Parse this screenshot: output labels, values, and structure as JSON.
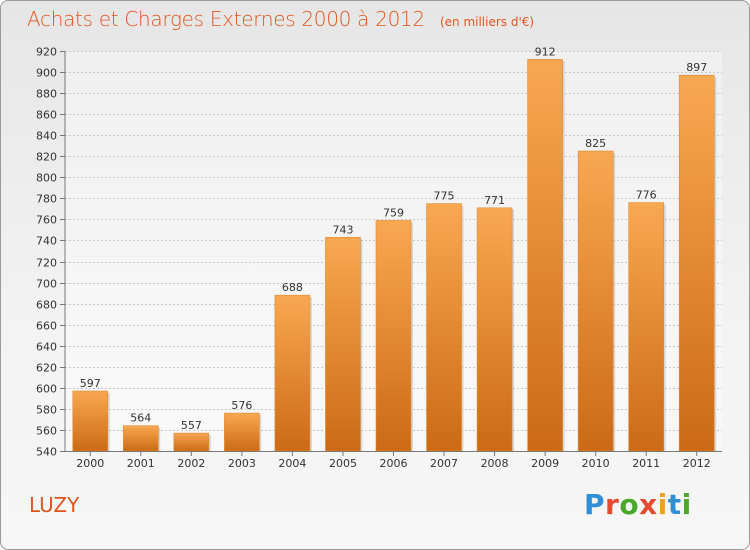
{
  "header": {
    "title": "Achats et Charges Externes 2000 à 2012",
    "subtitle": "(en milliers d'€)"
  },
  "footer": {
    "commune": "LUZY",
    "logo_letters": [
      "P",
      "r",
      "o",
      "x",
      "i",
      "t",
      "i"
    ],
    "logo_colors": [
      "#2f8fd8",
      "#e64a2f",
      "#4aa82a",
      "#e64a2f",
      "#f0a020",
      "#2f8fd8",
      "#4aa82a"
    ]
  },
  "colors": {
    "bar_light": "#f8a851",
    "bar_dark": "#cc6a15",
    "accent": "#e0561d",
    "grid": "#c8c8c8"
  },
  "chart_data": {
    "type": "bar",
    "categories": [
      "2000",
      "2001",
      "2002",
      "2003",
      "2004",
      "2005",
      "2006",
      "2007",
      "2008",
      "2009",
      "2010",
      "2011",
      "2012"
    ],
    "values": [
      597,
      564,
      557,
      576,
      688,
      743,
      759,
      775,
      771,
      912,
      825,
      776,
      897
    ],
    "ylim": [
      540,
      920
    ],
    "yticks": [
      540,
      560,
      580,
      600,
      620,
      640,
      660,
      680,
      700,
      720,
      740,
      760,
      780,
      800,
      820,
      840,
      860,
      880,
      900,
      920
    ],
    "grid": "horizontal dotted",
    "legend": "none"
  }
}
